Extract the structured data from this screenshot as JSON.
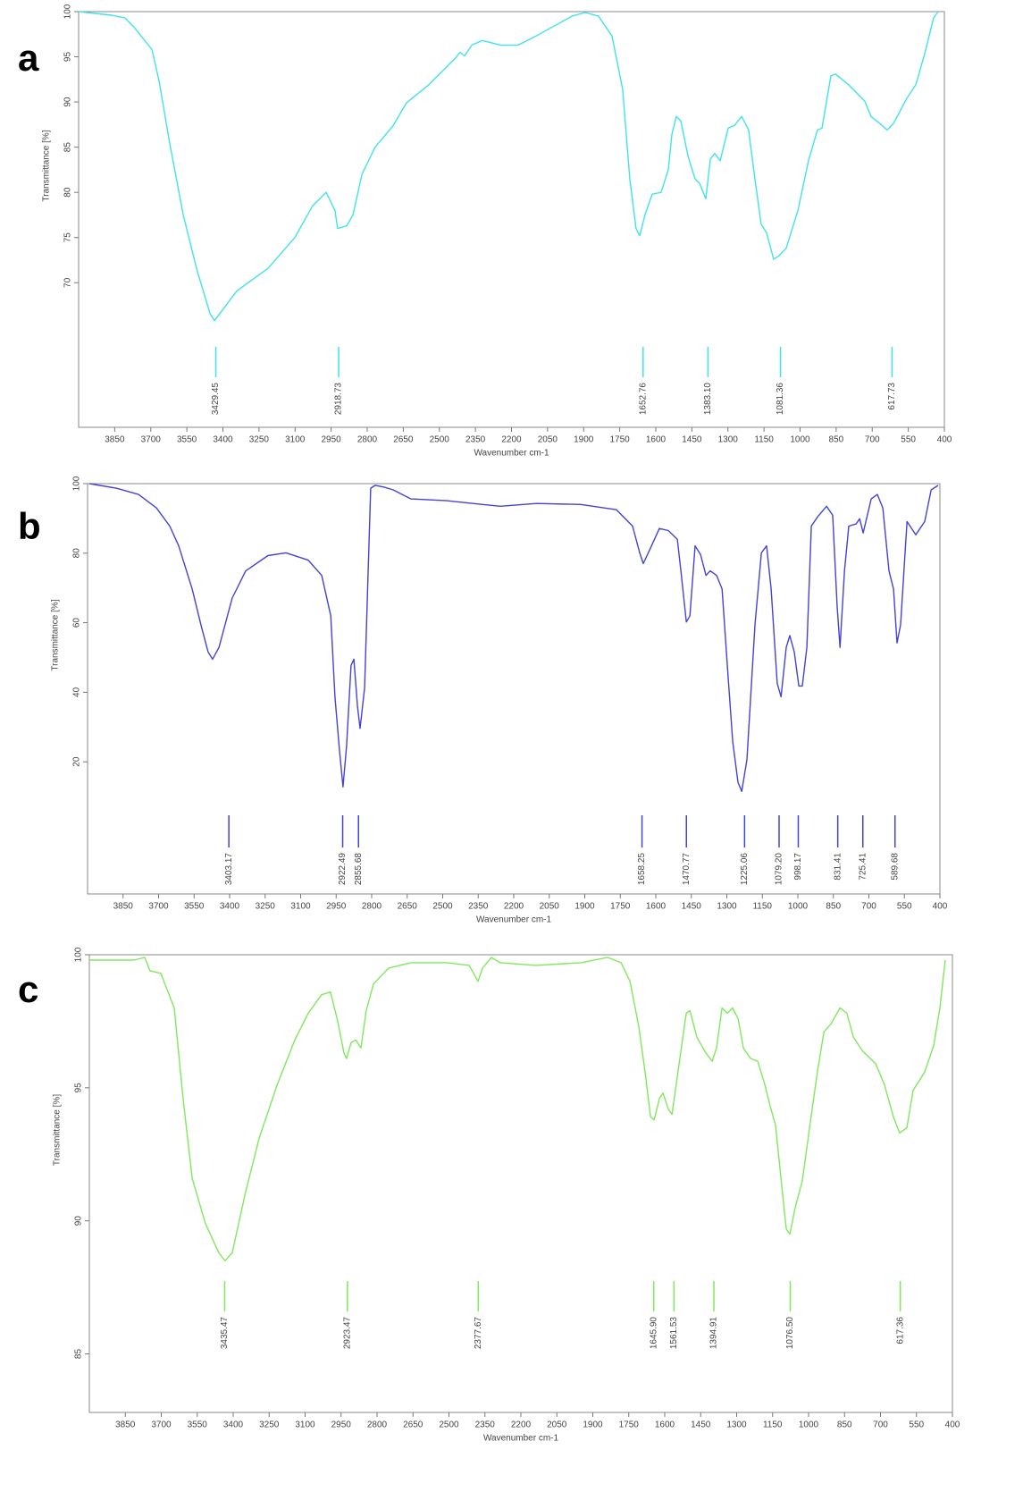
{
  "chart_data": [
    {
      "type": "line",
      "label": "a",
      "xlabel": "Wavenumber cm-1",
      "ylabel": "Transmittance [%]",
      "color": "#3fe3ea",
      "xlim": [
        4000,
        400
      ],
      "ylim": [
        54,
        100
      ],
      "xticks": [
        3850,
        3700,
        3550,
        3400,
        3250,
        3100,
        2950,
        2800,
        2650,
        2500,
        2350,
        2200,
        2050,
        1900,
        1750,
        1600,
        1450,
        1300,
        1150,
        1000,
        850,
        700,
        550,
        400
      ],
      "yticks": [
        70,
        75,
        80,
        85,
        90,
        95,
        100
      ],
      "peaks": [
        3429.45,
        2918.73,
        1652.76,
        {
          "value": 1383.1,
          "label": "1383.10"
        },
        1081.36,
        617.73
      ],
      "x": [
        4000,
        3863,
        3807,
        3770,
        3740,
        3695,
        3666,
        3621,
        3565,
        3510,
        3454,
        3435,
        3342,
        3212,
        3101,
        3027,
        2971,
        2934,
        2923,
        2885,
        2859,
        2822,
        2767,
        2692,
        2637,
        2544,
        2432,
        2414,
        2395,
        2365,
        2321,
        2246,
        2172,
        2098,
        1949,
        1894,
        1838,
        1782,
        1738,
        1708,
        1682,
        1667,
        1645,
        1615,
        1578,
        1548,
        1533,
        1515,
        1496,
        1466,
        1437,
        1418,
        1392,
        1373,
        1355,
        1332,
        1299,
        1273,
        1243,
        1214,
        1188,
        1162,
        1139,
        1110,
        1087,
        1058,
        1009,
        965,
        928,
        909,
        872,
        853,
        798,
        731,
        705,
        668,
        638,
        612,
        556,
        519,
        482,
        445,
        426
      ],
      "values": [
        100,
        99.6,
        99.3,
        98.3,
        97.3,
        95.8,
        92.4,
        85.4,
        77.5,
        71.6,
        66.6,
        65.8,
        69.1,
        71.6,
        75,
        78.5,
        80,
        78,
        76,
        76.3,
        77.5,
        82,
        85,
        87.4,
        89.9,
        91.9,
        94.9,
        95.5,
        95.1,
        96.3,
        96.8,
        96.3,
        96.3,
        97.3,
        99.5,
        99.9,
        99.5,
        97.3,
        91.4,
        81.5,
        76,
        75.2,
        77.5,
        79.8,
        80,
        82.5,
        86.4,
        88.4,
        87.9,
        84,
        81.5,
        81,
        79.3,
        83.7,
        84.3,
        83.5,
        87.1,
        87.4,
        88.4,
        86.9,
        81.5,
        76.5,
        75.5,
        72.6,
        73,
        73.8,
        78,
        83.5,
        86.9,
        87.1,
        92.9,
        93.1,
        91.9,
        90.1,
        88.4,
        87.6,
        86.9,
        87.6,
        90.4,
        91.9,
        95.3,
        99.3,
        100
      ]
    },
    {
      "type": "line",
      "label": "b",
      "xlabel": "Wavenumber cm-1",
      "ylabel": "Transmittance [%]",
      "color": "#4343d6",
      "xlim": [
        4000,
        400
      ],
      "ylim": [
        -18,
        100
      ],
      "xticks": [
        3850,
        3700,
        3550,
        3400,
        3250,
        3100,
        2950,
        2800,
        2650,
        2500,
        2350,
        2200,
        2050,
        1900,
        1750,
        1600,
        1450,
        1300,
        1150,
        1000,
        850,
        700,
        550,
        400
      ],
      "yticks": [
        20,
        40,
        60,
        80,
        100
      ],
      "peaks": [
        3403.17,
        2922.49,
        2855.68,
        1658.25,
        1470.77,
        1225.06,
        {
          "value": 1079.2,
          "label": "1079.20"
        },
        998.17,
        831.41,
        725.41,
        589.68
      ],
      "x": [
        3992,
        3879,
        3785,
        3709,
        3653,
        3615,
        3558,
        3521,
        3491,
        3472,
        3445,
        3389,
        3332,
        3238,
        3162,
        3068,
        3011,
        2973,
        2955,
        2936,
        2921,
        2906,
        2887,
        2875,
        2860,
        2849,
        2830,
        2804,
        2785,
        2747,
        2709,
        2634,
        2483,
        2332,
        2256,
        2105,
        1917,
        1766,
        1698,
        1668,
        1653,
        1623,
        1585,
        1547,
        1509,
        1494,
        1471,
        1456,
        1434,
        1411,
        1388,
        1370,
        1343,
        1320,
        1294,
        1275,
        1253,
        1237,
        1215,
        1181,
        1154,
        1132,
        1113,
        1087,
        1071,
        1049,
        1034,
        1015,
        996,
        981,
        962,
        943,
        917,
        879,
        853,
        834,
        822,
        803,
        785,
        754,
        739,
        724,
        690,
        664,
        641,
        615,
        596,
        581,
        566,
        539,
        502,
        464,
        437,
        407
      ],
      "values": [
        100,
        98.7,
        96.9,
        93,
        87.8,
        82.1,
        69.7,
        59.4,
        51.6,
        49.5,
        52.9,
        67.1,
        74.9,
        79.3,
        80.1,
        78,
        73.6,
        62,
        38.7,
        23.2,
        12.8,
        24.5,
        47.7,
        49.5,
        36,
        29.6,
        41.3,
        98.7,
        99.5,
        99,
        98.2,
        95.6,
        95.1,
        94,
        93.5,
        94.3,
        94,
        92.5,
        87.8,
        80.1,
        77,
        81.4,
        87.1,
        86.5,
        84,
        74.9,
        60.2,
        62,
        82.1,
        79.6,
        73.6,
        74.9,
        73.6,
        69.7,
        43.9,
        25.8,
        14.1,
        11.5,
        20.6,
        59.4,
        80.1,
        82.1,
        69.7,
        42.6,
        38.7,
        52.9,
        56.3,
        51.6,
        41.8,
        41.8,
        52.9,
        87.8,
        90.4,
        93.5,
        90.9,
        64.6,
        52.9,
        74.9,
        87.8,
        88.4,
        89.9,
        85.8,
        95.6,
        96.9,
        93,
        74.9,
        69.7,
        54.2,
        59.4,
        89.1,
        85.3,
        89.1,
        98.2,
        99.5
      ]
    },
    {
      "type": "line",
      "label": "c",
      "xlabel": "Wavenumber cm-1",
      "ylabel": "Transmittance [%]",
      "color": "#80e85c",
      "xlim": [
        4000,
        400
      ],
      "ylim": [
        82.8,
        100
      ],
      "xticks": [
        3850,
        3700,
        3550,
        3400,
        3250,
        3100,
        2950,
        2800,
        2650,
        2500,
        2350,
        2200,
        2050,
        1900,
        1750,
        1600,
        1450,
        1300,
        1150,
        1000,
        850,
        700,
        550,
        400
      ],
      "yticks": [
        85,
        90,
        95,
        100
      ],
      "peaks": [
        3435.47,
        2923.47,
        2377.67,
        {
          "value": 1645.9,
          "label": "1645.90"
        },
        1561.53,
        1394.91,
        {
          "value": 1076.5,
          "label": "1076.50"
        },
        617.36
      ],
      "x": [
        4000,
        3814,
        3769,
        3747,
        3702,
        3646,
        3609,
        3571,
        3516,
        3460,
        3434,
        3404,
        3348,
        3292,
        3217,
        3143,
        3087,
        3031,
        2994,
        2964,
        2938,
        2927,
        2908,
        2889,
        2867,
        2845,
        2815,
        2751,
        2658,
        2509,
        2416,
        2397,
        2379,
        2360,
        2323,
        2286,
        2137,
        1950,
        1838,
        1782,
        1745,
        1708,
        1682,
        1659,
        1644,
        1622,
        1607,
        1585,
        1570,
        1540,
        1510,
        1495,
        1466,
        1428,
        1402,
        1384,
        1361,
        1339,
        1317,
        1294,
        1272,
        1242,
        1212,
        1182,
        1160,
        1138,
        1115,
        1093,
        1078,
        1056,
        1026,
        996,
        963,
        936,
        907,
        869,
        840,
        813,
        776,
        720,
        683,
        646,
        620,
        590,
        564,
        515,
        478,
        452,
        430
      ],
      "values": [
        99.8,
        99.8,
        99.9,
        99.4,
        99.3,
        98,
        94.6,
        91.6,
        89.9,
        88.8,
        88.5,
        88.8,
        91.1,
        93.1,
        95.1,
        96.8,
        97.8,
        98.5,
        98.6,
        97.5,
        96.3,
        96.1,
        96.7,
        96.8,
        96.5,
        97.9,
        98.9,
        99.5,
        99.7,
        99.7,
        99.6,
        99.3,
        99,
        99.5,
        99.9,
        99.7,
        99.6,
        99.7,
        99.9,
        99.7,
        99,
        97.3,
        95.6,
        93.9,
        93.8,
        94.6,
        94.8,
        94.2,
        94,
        95.9,
        97.8,
        97.9,
        96.9,
        96.3,
        96,
        96.5,
        98,
        97.8,
        98,
        97.6,
        96.5,
        96.1,
        96,
        95.1,
        94.3,
        93.6,
        91.6,
        89.7,
        89.5,
        90.5,
        91.5,
        93.5,
        95.6,
        97.1,
        97.4,
        98,
        97.8,
        96.9,
        96.4,
        95.9,
        95.1,
        93.9,
        93.3,
        93.5,
        94.9,
        95.6,
        96.6,
        98,
        99.8
      ]
    }
  ]
}
